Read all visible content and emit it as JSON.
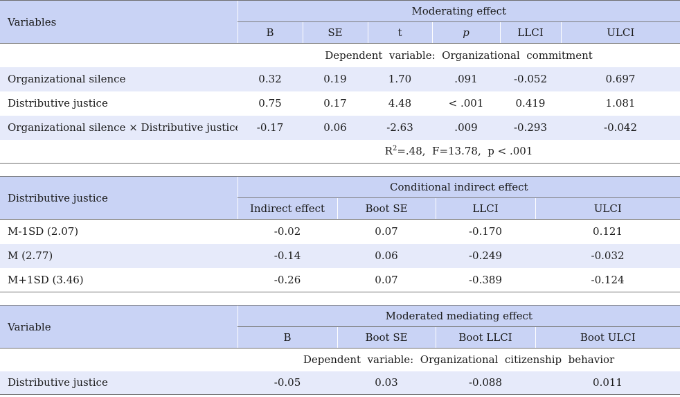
{
  "table1": {
    "row_header": "Variables",
    "group_header": "Moderating effect",
    "columns": [
      "B",
      "SE",
      "t",
      "p",
      "LLCI",
      "ULCI"
    ],
    "section_label": "Dependent  variable:  Organizational  commitment",
    "rows": [
      {
        "variable": "Organizational silence",
        "values": [
          "0.32",
          "0.19",
          "1.70",
          ".091",
          "-0.052",
          "0.697"
        ]
      },
      {
        "variable": "Distributive justice",
        "values": [
          "0.75",
          "0.17",
          "4.48",
          "< .001",
          "0.419",
          "1.081"
        ]
      },
      {
        "variable": "Organizational silence × Distributive justice",
        "values": [
          "-0.17",
          "0.06",
          "-2.63",
          ".009",
          "-0.293",
          "-0.042"
        ]
      }
    ],
    "footer_r": "R",
    "footer_sup": "2",
    "footer_rest": "=.48,  F=13.78,  p < .001"
  },
  "table2": {
    "row_header": "Distributive justice",
    "group_header": "Conditional indirect effect",
    "columns": [
      "Indirect effect",
      "Boot SE",
      "LLCI",
      "ULCI"
    ],
    "rows": [
      {
        "variable": "M-1SD (2.07)",
        "values": [
          "-0.02",
          "0.07",
          "-0.170",
          "0.121"
        ]
      },
      {
        "variable": "M (2.77)",
        "values": [
          "-0.14",
          "0.06",
          "-0.249",
          "-0.032"
        ]
      },
      {
        "variable": "M+1SD (3.46)",
        "values": [
          "-0.26",
          "0.07",
          "-0.389",
          "-0.124"
        ]
      }
    ]
  },
  "table3": {
    "row_header": "Variable",
    "group_header": "Moderated mediating effect",
    "columns": [
      "B",
      "Boot SE",
      "Boot LLCI",
      "Boot ULCI"
    ],
    "section_label": "Dependent  variable:  Organizational  citizenship  behavior",
    "rows": [
      {
        "variable": "Distributive justice",
        "values": [
          "-0.05",
          "0.03",
          "-0.088",
          "0.011"
        ]
      }
    ]
  },
  "colors": {
    "header_bg": "#c9d3f5",
    "alt_row_bg": "#e6eafa",
    "rule": "#6e6e6e"
  }
}
